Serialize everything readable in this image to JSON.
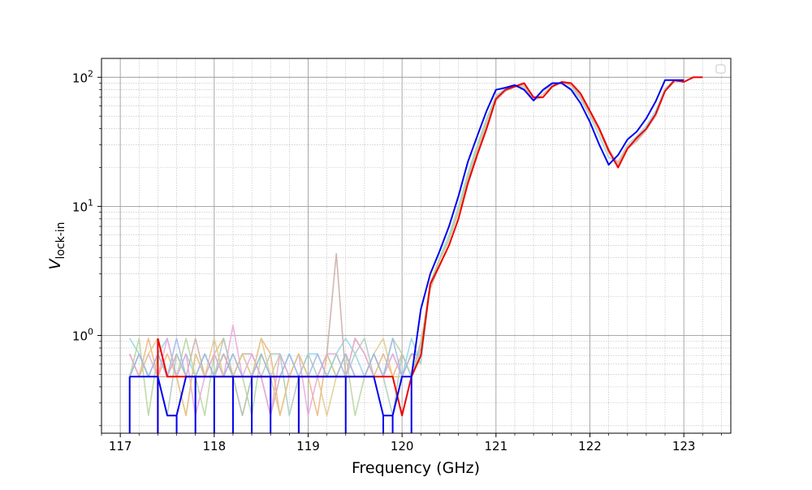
{
  "colors": {
    "blue": "#0000ee",
    "red": "#ee0000",
    "grid_major": "#9e9e9e",
    "grid_minor": "#b8b8b8",
    "faded": [
      "#8fd3e8",
      "#f0b27a",
      "#c9a9a6",
      "#b5d59a",
      "#e9a6dc",
      "#a9c9c0",
      "#e0c98a",
      "#9fb7e6",
      "#c8c8c8",
      "#f0a0a0"
    ]
  },
  "chart_data": {
    "type": "line",
    "xlabel": "Frequency (GHz)",
    "ylabel": "V",
    "ylabel_sub": "lock-in",
    "xlim": [
      116.8,
      123.5
    ],
    "ylim": [
      0.175,
      140
    ],
    "yscale": "log",
    "xticks": [
      117,
      118,
      119,
      120,
      121,
      122,
      123
    ],
    "xtick_labels": [
      "117",
      "118",
      "119",
      "120",
      "121",
      "122",
      "123"
    ],
    "yticks": [
      1,
      10,
      100
    ],
    "ytick_labels": [
      "10",
      "10",
      "10"
    ],
    "ytick_exponents": [
      "0",
      "1",
      "2"
    ],
    "grid": true,
    "legend": "top-right (empty)",
    "highlight_series": [
      {
        "color": "blue",
        "x": [
          117.1,
          117.2,
          117.3,
          117.4,
          117.5,
          117.6,
          117.7,
          117.8,
          117.9,
          118.0,
          118.1,
          118.2,
          118.3,
          118.4,
          118.5,
          118.6,
          118.7,
          118.8,
          118.9,
          119.0,
          119.1,
          119.2,
          119.3,
          119.4,
          119.5,
          119.6,
          119.7,
          119.8,
          119.9,
          120.0,
          120.1,
          120.2,
          120.3,
          120.4,
          120.5,
          120.6,
          120.7,
          120.8,
          120.9,
          121.0,
          121.1,
          121.2,
          121.3,
          121.4,
          121.5,
          121.6,
          121.7,
          121.8,
          121.9,
          122.0,
          122.1,
          122.2,
          122.3,
          122.4,
          122.5,
          122.6,
          122.7,
          122.8,
          122.9,
          123.0
        ],
        "y": [
          0.48,
          0.48,
          0.48,
          0.48,
          0.24,
          0.24,
          0.48,
          0.48,
          0.48,
          0.48,
          0.48,
          0.48,
          0.48,
          0.48,
          0.48,
          0.48,
          0.48,
          0.48,
          0.48,
          0.48,
          0.48,
          0.48,
          0.48,
          0.48,
          0.48,
          0.48,
          0.48,
          0.24,
          0.24,
          0.48,
          0.48,
          1.6,
          3.0,
          4.5,
          7,
          12,
          22,
          35,
          55,
          80,
          83,
          87,
          80,
          66,
          80,
          90,
          90,
          80,
          63,
          45,
          30,
          21,
          25,
          33,
          38,
          48,
          65,
          95,
          95,
          95
        ],
        "drops": [
          117.1,
          117.4,
          117.6,
          117.8,
          118.0,
          118.2,
          118.4,
          118.6,
          118.9,
          119.4,
          119.8,
          119.9,
          120.1
        ]
      },
      {
        "color": "red",
        "x": [
          117.4,
          117.5,
          117.6,
          117.7,
          117.8,
          117.9,
          118.0,
          118.1,
          118.2,
          118.3,
          118.4,
          118.5,
          118.6,
          118.7,
          118.8,
          118.9,
          119.0,
          119.1,
          119.2,
          119.3,
          119.4,
          119.5,
          119.6,
          119.7,
          119.8,
          119.9,
          120.0,
          120.1,
          120.2,
          120.3,
          120.4,
          120.5,
          120.6,
          120.7,
          120.8,
          120.9,
          121.0,
          121.1,
          121.2,
          121.3,
          121.4,
          121.5,
          121.6,
          121.7,
          121.8,
          121.9,
          122.0,
          122.1,
          122.2,
          122.3,
          122.4,
          122.5,
          122.6,
          122.7,
          122.8,
          122.9,
          123.0,
          123.1,
          123.2
        ],
        "y": [
          0.95,
          0.48,
          0.48,
          0.48,
          0.48,
          0.48,
          0.48,
          0.48,
          0.48,
          0.48,
          0.48,
          0.48,
          0.48,
          0.48,
          0.48,
          0.48,
          0.48,
          0.48,
          0.48,
          0.48,
          0.48,
          0.48,
          0.48,
          0.48,
          0.48,
          0.48,
          0.24,
          0.48,
          0.7,
          2.5,
          3.5,
          5,
          8,
          15,
          25,
          40,
          68,
          80,
          85,
          90,
          70,
          70,
          85,
          92,
          90,
          75,
          55,
          40,
          27,
          20,
          28,
          34,
          40,
          52,
          78,
          95,
          92,
          100,
          100
        ],
        "drops": [
          117.4,
          118.9
        ]
      }
    ],
    "background_series": [
      {
        "color_index": 0,
        "x": [
          117.1,
          117.2,
          117.3,
          117.4,
          117.5,
          117.6,
          117.7,
          117.8,
          117.9,
          118.0,
          118.1,
          118.2,
          118.3,
          118.4,
          118.5,
          118.6,
          118.7,
          118.8,
          118.9,
          119.0,
          119.1,
          119.2,
          119.3,
          119.4,
          119.5,
          119.6,
          119.7,
          119.8,
          119.9,
          120.0,
          120.1,
          120.2,
          120.3,
          120.4,
          120.5,
          120.6,
          120.7,
          120.8,
          120.9,
          121.0,
          121.1,
          121.2,
          121.3,
          121.4,
          121.5,
          121.6,
          121.7,
          121.8,
          121.9,
          122.0,
          122.1,
          122.2,
          122.3,
          122.4,
          122.5,
          122.6,
          122.7,
          122.8,
          122.9,
          123.0
        ],
        "y": [
          0.95,
          0.72,
          0.48,
          0.72,
          0.95,
          0.48,
          0.72,
          0.48,
          0.72,
          0.48,
          0.72,
          0.48,
          0.72,
          0.48,
          0.72,
          0.48,
          0.48,
          0.72,
          0.48,
          0.72,
          0.72,
          0.48,
          0.72,
          0.95,
          0.72,
          0.48,
          0.72,
          0.48,
          0.72,
          0.48,
          0.95,
          0.6,
          2.5,
          4,
          6,
          10,
          18,
          30,
          48,
          72,
          82,
          86,
          82,
          68,
          78,
          88,
          90,
          82,
          68,
          50,
          35,
          24,
          22,
          30,
          35,
          42,
          55,
          82,
          95,
          92
        ]
      },
      {
        "color_index": 1,
        "x": [
          117.1,
          117.2,
          117.3,
          117.4,
          117.5,
          117.6,
          117.7,
          117.8,
          117.9,
          118.0,
          118.1,
          118.2,
          118.3,
          118.4,
          118.5,
          118.6,
          118.7,
          118.8,
          118.9,
          119.0,
          119.1,
          119.2,
          119.3,
          119.4,
          119.5,
          119.6,
          119.7,
          119.8,
          119.9,
          120.0,
          120.1,
          120.2,
          120.3,
          120.4,
          120.5,
          120.6,
          120.7,
          120.8,
          120.9,
          121.0,
          121.1,
          121.2,
          121.3,
          121.4,
          121.5,
          121.6,
          121.7,
          121.8,
          121.9,
          122.0,
          122.1,
          122.2,
          122.3,
          122.4,
          122.5,
          122.6,
          122.7,
          122.8,
          122.9,
          123.0
        ],
        "y": [
          0.72,
          0.48,
          0.95,
          0.48,
          0.72,
          0.48,
          0.24,
          0.72,
          0.48,
          0.72,
          0.95,
          0.48,
          0.24,
          0.48,
          0.95,
          0.72,
          0.24,
          0.48,
          0.72,
          0.48,
          0.24,
          0.72,
          0.48,
          0.48,
          0.95,
          0.72,
          0.48,
          0.72,
          0.48,
          0.72,
          0.48,
          0.7,
          2.4,
          3.8,
          5.5,
          9,
          17,
          28,
          45,
          70,
          80,
          84,
          85,
          66,
          74,
          86,
          92,
          86,
          70,
          52,
          38,
          26,
          22,
          29,
          33,
          40,
          52,
          80,
          93,
          94
        ]
      },
      {
        "color_index": 2,
        "x": [
          117.1,
          117.2,
          117.3,
          117.4,
          117.5,
          117.6,
          117.7,
          117.8,
          117.9,
          118.0,
          118.1,
          118.2,
          118.3,
          118.4,
          118.5,
          118.6,
          118.7,
          118.8,
          118.9,
          119.0,
          119.1,
          119.2,
          119.3,
          119.4,
          119.5,
          119.6,
          119.7,
          119.8,
          119.9,
          120.0,
          120.1,
          120.2,
          120.3,
          120.4,
          120.5,
          120.6,
          120.7,
          120.8,
          120.9,
          121.0,
          121.1,
          121.2,
          121.3,
          121.4,
          121.5,
          121.6,
          121.7,
          121.8,
          121.9,
          122.0,
          122.1,
          122.2,
          122.3,
          122.4,
          122.5,
          122.6,
          122.7,
          122.8,
          122.9,
          123.0
        ],
        "y": [
          0.48,
          0.72,
          0.48,
          0.48,
          0.48,
          0.72,
          0.48,
          0.95,
          0.48,
          0.48,
          0.72,
          0.48,
          0.72,
          0.72,
          0.48,
          0.24,
          0.48,
          0.48,
          0.48,
          0.48,
          0.48,
          0.72,
          4.3,
          0.48,
          0.48,
          0.48,
          0.72,
          0.48,
          0.48,
          0.48,
          0.48,
          0.9,
          2.3,
          3.5,
          5,
          8,
          16,
          26,
          42,
          66,
          78,
          84,
          88,
          67,
          70,
          84,
          91,
          88,
          72,
          54,
          40,
          28,
          21,
          28,
          32,
          39,
          50,
          78,
          92,
          93
        ]
      },
      {
        "color_index": 3,
        "x": [
          117.1,
          117.2,
          117.3,
          117.4,
          117.5,
          117.6,
          117.7,
          117.8,
          117.9,
          118.0,
          118.1,
          118.2,
          118.3,
          118.4,
          118.5,
          118.6,
          118.7,
          118.8,
          118.9,
          119.0,
          119.1,
          119.2,
          119.3,
          119.4,
          119.5,
          119.6,
          119.7,
          119.8,
          119.9,
          120.0,
          120.1,
          120.2,
          120.3,
          120.4,
          120.5,
          120.6,
          120.7,
          120.8,
          120.9,
          121.0
        ],
        "y": [
          0.48,
          0.95,
          0.24,
          0.72,
          0.48,
          0.48,
          0.95,
          0.48,
          0.24,
          0.72,
          0.48,
          0.72,
          0.48,
          0.24,
          0.72,
          0.48,
          0.72,
          0.48,
          0.72,
          0.48,
          0.48,
          0.72,
          0.48,
          0.72,
          0.24,
          0.48,
          0.72,
          0.48,
          0.95,
          0.72,
          0.48,
          0.85,
          2.6,
          3.9,
          5.6,
          9.5,
          17,
          29,
          46,
          71
        ]
      },
      {
        "color_index": 4,
        "x": [
          117.1,
          117.2,
          117.3,
          117.4,
          117.5,
          117.6,
          117.7,
          117.8,
          117.9,
          118.0,
          118.1,
          118.2,
          118.3,
          118.4,
          118.5,
          118.6,
          118.7,
          118.8,
          118.9,
          119.0,
          119.1,
          119.2,
          119.3,
          119.4,
          119.5,
          119.6,
          119.7,
          119.8,
          119.9,
          120.0,
          120.1,
          120.2
        ],
        "y": [
          0.72,
          0.48,
          0.72,
          0.48,
          0.95,
          0.48,
          0.72,
          0.24,
          0.48,
          0.72,
          0.48,
          1.2,
          0.48,
          0.72,
          0.48,
          0.24,
          0.72,
          0.48,
          0.72,
          0.24,
          0.48,
          0.72,
          0.72,
          0.48,
          0.95,
          0.72,
          0.48,
          0.48,
          0.72,
          0.48,
          0.72,
          0.7
        ]
      },
      {
        "color_index": 5,
        "x": [
          117.1,
          117.2,
          117.3,
          117.4,
          117.5,
          117.6,
          117.7,
          117.8,
          117.9,
          118.0,
          118.1,
          118.2,
          118.3,
          118.4,
          118.5,
          118.6,
          118.7,
          118.8,
          118.9,
          119.0,
          119.1,
          119.2,
          119.3,
          119.4,
          119.5,
          119.6,
          119.7,
          119.8,
          119.9,
          120.0,
          120.1,
          120.2
        ],
        "y": [
          0.48,
          0.72,
          0.48,
          0.48,
          0.24,
          0.72,
          0.48,
          0.48,
          0.72,
          0.48,
          0.95,
          0.48,
          0.24,
          0.48,
          0.48,
          0.72,
          0.72,
          0.24,
          0.48,
          0.72,
          0.48,
          0.48,
          0.72,
          0.48,
          0.72,
          0.95,
          0.48,
          0.48,
          0.24,
          0.72,
          0.48,
          0.8
        ]
      },
      {
        "color_index": 6,
        "x": [
          117.1,
          117.2,
          117.3,
          117.4,
          117.5,
          117.6,
          117.7,
          117.8,
          117.9,
          118.0,
          118.1,
          118.2,
          118.3,
          118.4,
          118.5,
          118.6,
          118.7,
          118.8,
          118.9,
          119.0,
          119.1,
          119.2,
          119.3,
          119.4,
          119.5,
          119.6,
          119.7,
          119.8,
          119.9,
          120.0,
          120.1,
          120.2
        ],
        "y": [
          0.48,
          0.48,
          0.72,
          0.95,
          0.48,
          0.48,
          0.24,
          0.72,
          0.48,
          0.95,
          0.48,
          0.48,
          0.72,
          0.48,
          0.95,
          0.48,
          0.24,
          0.48,
          0.72,
          0.48,
          0.48,
          0.24,
          0.48,
          0.72,
          0.48,
          0.48,
          0.72,
          0.95,
          0.48,
          0.48,
          0.72,
          0.6
        ]
      },
      {
        "color_index": 7,
        "x": [
          117.1,
          117.2,
          117.3,
          117.4,
          117.5,
          117.6,
          117.7,
          117.8,
          117.9,
          118.0,
          118.1,
          118.2,
          118.3,
          118.4,
          118.5,
          118.6,
          118.7,
          118.8,
          118.9,
          119.0,
          119.1,
          119.2,
          119.3,
          119.4,
          119.5,
          119.6,
          119.7,
          119.8,
          119.9,
          120.0,
          120.1,
          120.2
        ],
        "y": [
          0.48,
          0.72,
          0.48,
          0.72,
          0.48,
          0.95,
          0.48,
          0.48,
          0.72,
          0.48,
          0.48,
          0.72,
          0.48,
          0.48,
          0.72,
          0.48,
          0.48,
          0.72,
          0.48,
          0.48,
          0.72,
          0.48,
          0.48,
          0.72,
          0.48,
          0.48,
          0.72,
          0.48,
          0.95,
          0.48,
          0.72,
          0.7
        ]
      }
    ]
  }
}
